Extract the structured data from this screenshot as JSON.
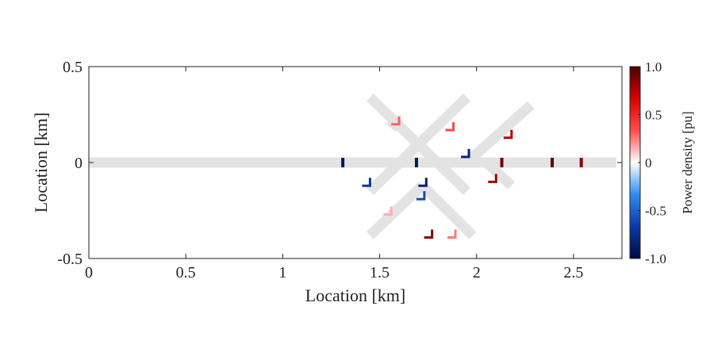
{
  "chart_data": {
    "type": "heatmap",
    "title": "",
    "xlabel": "Location [km]",
    "ylabel": "Location [km]",
    "xlim": [
      0,
      2.75
    ],
    "ylim": [
      -0.5,
      0.5
    ],
    "xticks": [
      0,
      0.5,
      1,
      1.5,
      2,
      2.5
    ],
    "xtick_labels": [
      "0",
      "0.5",
      "1",
      "1.5",
      "2",
      "2.5"
    ],
    "yticks": [
      -0.5,
      0,
      0.5
    ],
    "ytick_labels": [
      "-0.5",
      "0",
      "0.5"
    ],
    "grid": false,
    "colorbar": {
      "label": "Power density [pu]",
      "range": [
        -1.0,
        1.0
      ],
      "ticks": [
        1.0,
        0.5,
        0,
        -0.5,
        -1.0
      ],
      "tick_labels": [
        "1.0",
        "0.5",
        "0",
        "-0.5",
        "-1.0"
      ],
      "colors": [
        "#000a40",
        "#0a3aa8",
        "#2f8cf0",
        "#ffffff",
        "#ff4d4d",
        "#d90000",
        "#4a0000"
      ]
    },
    "pipes": [
      {
        "name": "main-line",
        "from": [
          0,
          0
        ],
        "to": [
          2.72,
          0
        ]
      },
      {
        "name": "diagonal-descending",
        "from": [
          1.45,
          0.34
        ],
        "to": [
          1.95,
          -0.15
        ]
      },
      {
        "name": "diagonal-ascending",
        "from": [
          1.45,
          -0.15
        ],
        "to": [
          1.95,
          0.34
        ]
      },
      {
        "name": "right-upper-branch",
        "from": [
          1.95,
          0
        ],
        "to": [
          2.28,
          0.3
        ]
      },
      {
        "name": "right-lower-branch",
        "from": [
          2.05,
          0
        ],
        "to": [
          2.18,
          -0.12
        ]
      },
      {
        "name": "lower-left-branch",
        "from": [
          1.72,
          -0.12
        ],
        "to": [
          1.45,
          -0.38
        ]
      },
      {
        "name": "lower-right-branch",
        "from": [
          1.72,
          -0.12
        ],
        "to": [
          1.98,
          -0.38
        ]
      },
      {
        "name": "upper-left-stub",
        "from": [
          1.6,
          0.18
        ],
        "to": [
          1.55,
          0.22
        ]
      }
    ],
    "markers": [
      {
        "x": 1.31,
        "y": 0,
        "value": -0.9,
        "shape": "bar"
      },
      {
        "x": 1.69,
        "y": 0,
        "value": -0.9,
        "shape": "bar"
      },
      {
        "x": 2.13,
        "y": 0,
        "value": 0.9,
        "shape": "bar"
      },
      {
        "x": 2.39,
        "y": 0,
        "value": 0.95,
        "shape": "bar"
      },
      {
        "x": 2.54,
        "y": 0,
        "value": 0.85,
        "shape": "bar"
      },
      {
        "x": 1.43,
        "y": -0.1,
        "value": -0.7,
        "shape": "corner"
      },
      {
        "x": 1.72,
        "y": -0.1,
        "value": -0.85,
        "shape": "corner"
      },
      {
        "x": 1.71,
        "y": -0.17,
        "value": -0.6,
        "shape": "corner"
      },
      {
        "x": 1.94,
        "y": 0.05,
        "value": -0.8,
        "shape": "corner"
      },
      {
        "x": 1.58,
        "y": 0.22,
        "value": 0.3,
        "shape": "corner"
      },
      {
        "x": 1.86,
        "y": 0.19,
        "value": 0.35,
        "shape": "corner"
      },
      {
        "x": 2.16,
        "y": 0.15,
        "value": 0.75,
        "shape": "corner"
      },
      {
        "x": 2.08,
        "y": -0.08,
        "value": 0.8,
        "shape": "corner"
      },
      {
        "x": 1.54,
        "y": -0.25,
        "value": 0.15,
        "shape": "corner"
      },
      {
        "x": 1.75,
        "y": -0.37,
        "value": 0.85,
        "shape": "corner"
      },
      {
        "x": 1.87,
        "y": -0.37,
        "value": 0.25,
        "shape": "corner"
      }
    ]
  }
}
